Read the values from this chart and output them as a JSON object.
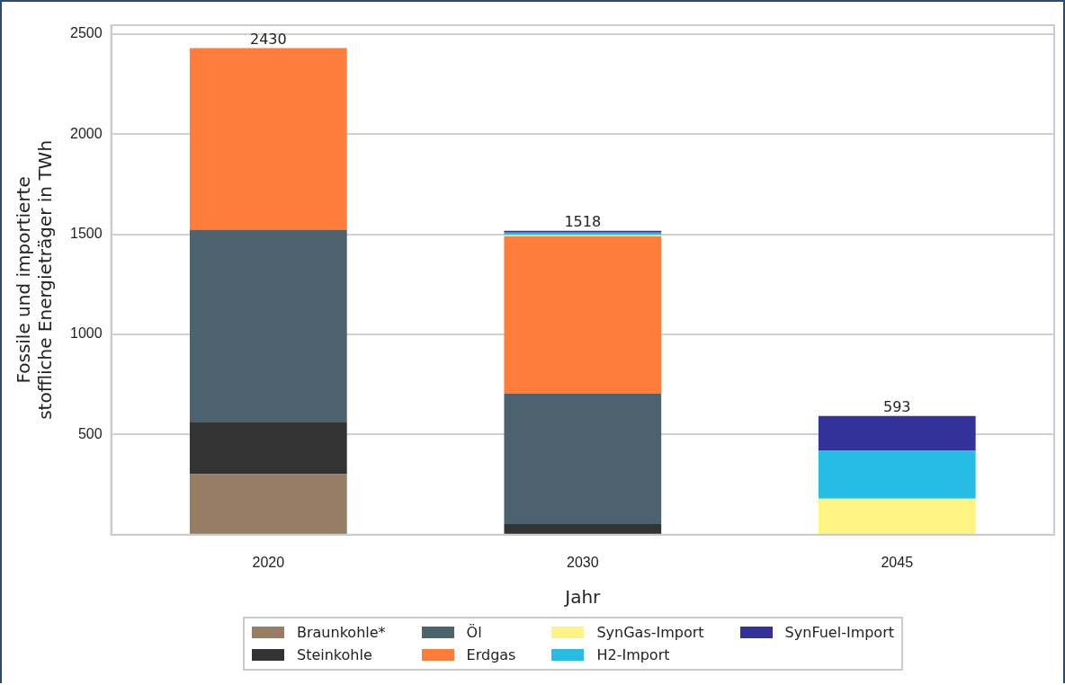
{
  "chart_data": {
    "type": "bar",
    "stacked": true,
    "xlabel": "Jahr",
    "ylabel": "Fossile und importierte\nstoffliche Energieträger in TWh",
    "categories": [
      "2020",
      "2030",
      "2045"
    ],
    "series": [
      {
        "name": "Braunkohle*",
        "color": "#967d63",
        "values": [
          302,
          0,
          0
        ]
      },
      {
        "name": "Steinkohle",
        "color": "#333333",
        "values": [
          258,
          53,
          0
        ]
      },
      {
        "name": "Öl",
        "color": "#4c626e",
        "values": [
          963,
          651,
          0
        ]
      },
      {
        "name": "Erdgas",
        "color": "#ff7c3b",
        "values": [
          907,
          787,
          0
        ]
      },
      {
        "name": "SynGas-Import",
        "color": "#fff383",
        "values": [
          0,
          6,
          180
        ]
      },
      {
        "name": "H2-Import",
        "color": "#27bce3",
        "values": [
          0,
          12,
          239
        ]
      },
      {
        "name": "SynFuel-Import",
        "color": "#33329a",
        "values": [
          0,
          9,
          174
        ]
      }
    ],
    "totals": [
      "2430",
      "1518",
      "593"
    ],
    "ylim": [
      0,
      2545
    ],
    "yticks": [
      500,
      1000,
      1500,
      2000,
      2500
    ],
    "grid": "y",
    "legend": "bottom"
  }
}
